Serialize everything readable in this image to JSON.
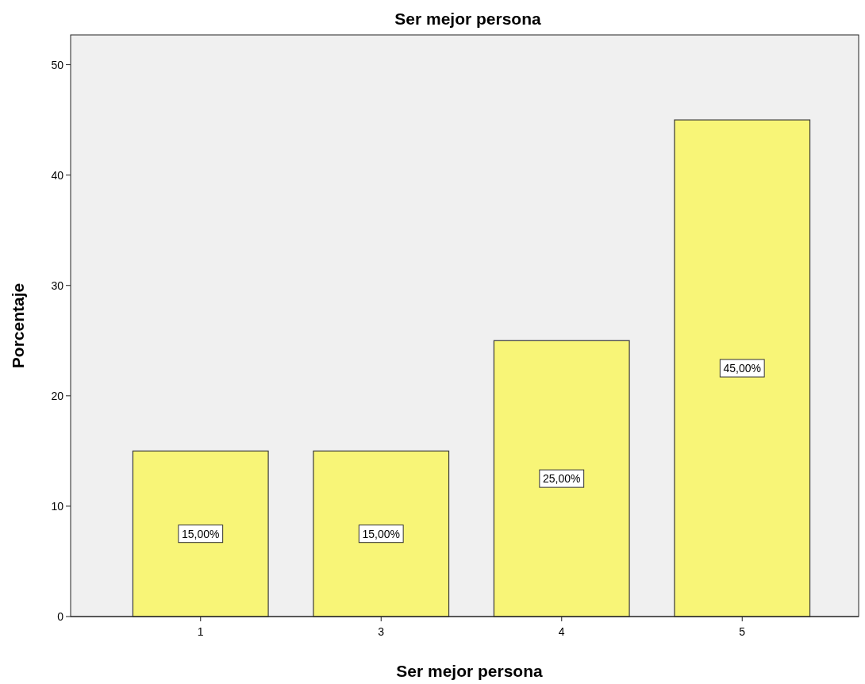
{
  "chart_data": {
    "type": "bar",
    "title": "Ser mejor persona",
    "xlabel": "Ser mejor persona",
    "ylabel": "Porcentaje",
    "categories": [
      "1",
      "3",
      "4",
      "5"
    ],
    "values": [
      15,
      15,
      25,
      45
    ],
    "value_labels": [
      "15,00%",
      "15,00%",
      "25,00%",
      "45,00%"
    ],
    "color": "#f8f577",
    "ylim": [
      0,
      52.7
    ],
    "yticks": [
      0,
      10,
      20,
      30,
      40,
      50
    ],
    "grid": false
  }
}
